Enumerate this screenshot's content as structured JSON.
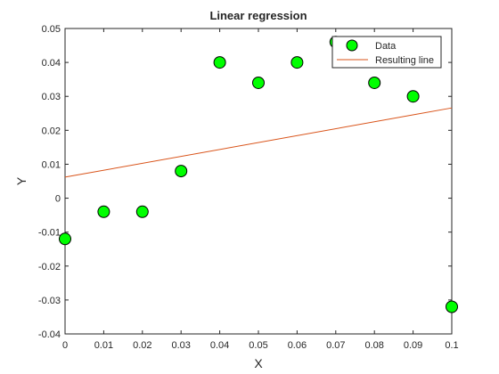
{
  "chart_data": {
    "type": "scatter",
    "title": "Linear regression",
    "xlabel": "X",
    "ylabel": "Y",
    "xlim": [
      0,
      0.1
    ],
    "ylim": [
      -0.04,
      0.05
    ],
    "xticks": [
      "0",
      "0.01",
      "0.02",
      "0.03",
      "0.04",
      "0.05",
      "0.06",
      "0.07",
      "0.08",
      "0.09",
      "0.1"
    ],
    "yticks": [
      "-0.04",
      "-0.03",
      "-0.02",
      "-0.01",
      "0",
      "0.01",
      "0.02",
      "0.03",
      "0.04",
      "0.05"
    ],
    "grid": false,
    "legend_position": "top-right",
    "series": [
      {
        "name": "Data",
        "kind": "scatter",
        "color": "#00ff00",
        "x": [
          0,
          0.01,
          0.02,
          0.03,
          0.04,
          0.05,
          0.06,
          0.07,
          0.08,
          0.09,
          0.1
        ],
        "y": [
          -0.012,
          -0.004,
          -0.004,
          0.008,
          0.04,
          0.034,
          0.04,
          0.046,
          0.034,
          0.03,
          -0.032
        ]
      },
      {
        "name": "Resulting line",
        "kind": "line",
        "color": "#d95319",
        "x": [
          0,
          0.1
        ],
        "y": [
          0.0062,
          0.0266
        ]
      }
    ]
  }
}
